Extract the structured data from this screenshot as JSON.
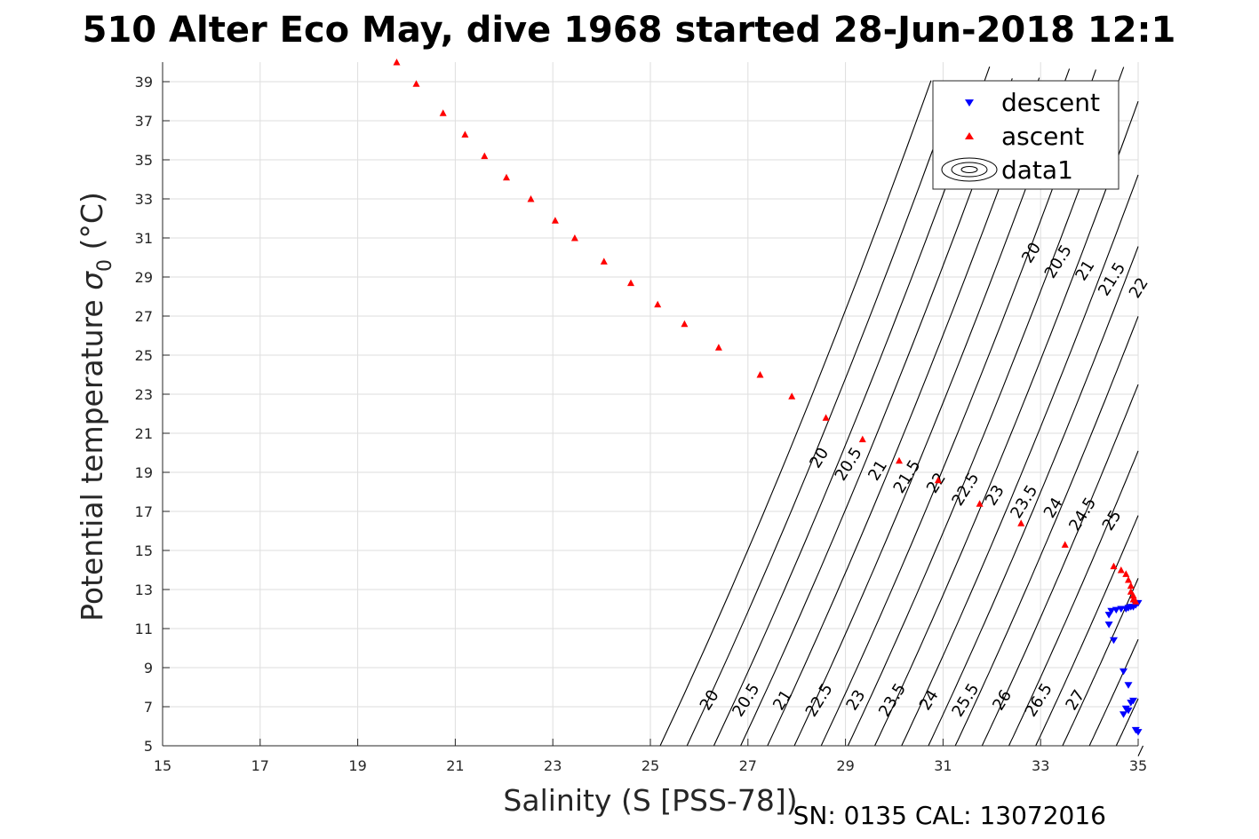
{
  "chart_data": {
    "type": "scatter",
    "title": "510 Alter Eco May, dive 1968 started 28-Jun-2018 12:1",
    "xlabel": "Salinity (S [PSS-78])",
    "ylabel_main": "Potential temperature ",
    "ylabel_symbol": "σ",
    "ylabel_subscript": "0",
    "ylabel_unit": " (°C)",
    "footer": "SN: 0135  CAL: 13072016",
    "xlim": [
      15,
      35
    ],
    "ylim": [
      5,
      40
    ],
    "xticks": [
      "15",
      "17",
      "19",
      "21",
      "23",
      "25",
      "27",
      "29",
      "31",
      "33",
      "35"
    ],
    "yticks": [
      "5",
      "7",
      "9",
      "11",
      "13",
      "15",
      "17",
      "19",
      "21",
      "23",
      "25",
      "27",
      "29",
      "31",
      "33",
      "35",
      "37",
      "39"
    ],
    "grid": true,
    "legend": {
      "position": "top-right",
      "entries": [
        "descent",
        "ascent",
        "data1"
      ]
    },
    "colors": {
      "descent": "#0000ff",
      "ascent": "#ff0000",
      "contour": "#000000",
      "grid": "#dedede"
    },
    "series": [
      {
        "name": "descent",
        "marker": "triangle-down",
        "x": [
          34.4,
          34.45,
          34.55,
          34.65,
          34.75,
          34.8,
          34.85,
          34.9,
          34.95,
          35.0,
          34.4,
          34.5,
          34.7,
          34.8,
          34.85,
          34.9,
          34.75,
          34.7,
          34.8,
          34.95,
          35.0
        ],
        "y": [
          11.7,
          11.9,
          11.95,
          12.0,
          12.0,
          12.05,
          12.1,
          12.1,
          12.2,
          12.3,
          11.2,
          10.4,
          8.8,
          8.1,
          7.2,
          7.3,
          6.9,
          6.6,
          6.8,
          5.8,
          5.7
        ]
      },
      {
        "name": "ascent",
        "marker": "triangle-up",
        "x": [
          19.8,
          20.2,
          20.75,
          21.2,
          21.6,
          22.05,
          22.55,
          23.05,
          23.45,
          24.05,
          24.6,
          25.15,
          25.7,
          26.4,
          27.25,
          27.9,
          28.6,
          29.35,
          30.1,
          30.9,
          31.75,
          32.6,
          33.5,
          34.5,
          34.65,
          34.75,
          34.8,
          34.85,
          34.85,
          34.9,
          34.9,
          34.95
        ],
        "y": [
          40.0,
          38.9,
          37.4,
          36.3,
          35.2,
          34.1,
          33.0,
          31.9,
          31.0,
          29.8,
          28.7,
          27.6,
          26.6,
          25.4,
          24.0,
          22.9,
          21.8,
          20.7,
          19.6,
          18.6,
          17.4,
          16.4,
          15.3,
          14.2,
          14.0,
          13.8,
          13.5,
          13.2,
          12.9,
          12.7,
          12.5,
          12.4
        ]
      }
    ],
    "contours": {
      "name": "data1",
      "levels_upper": [
        "20",
        "20.5",
        "21",
        "21.5",
        "22"
      ],
      "levels_lower": [
        "20",
        "20.5",
        "21",
        "21.5",
        "22",
        "22.5",
        "23",
        "23.5",
        "24",
        "24.5",
        "25"
      ],
      "levels_bottom": [
        "20",
        "20.5",
        "21",
        "22.5",
        "23",
        "23.5",
        "24",
        "25.5",
        "26",
        "26.5",
        "27"
      ]
    }
  }
}
